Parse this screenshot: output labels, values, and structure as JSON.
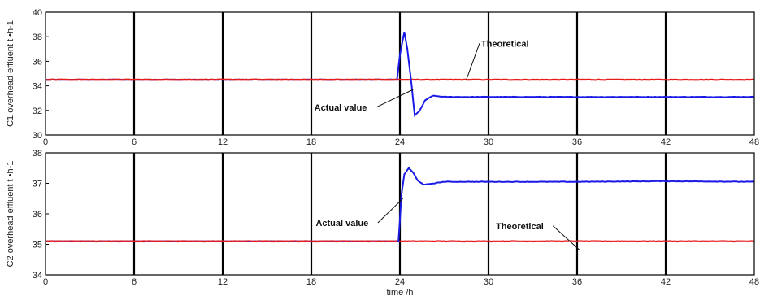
{
  "colors": {
    "actual": "#1a1ae6",
    "theoretical": "#e81b1b",
    "grid": "#000000",
    "axis": "#000000"
  },
  "chart_data": [
    {
      "type": "line",
      "ylabel": "C1 overhead effluent t •h-1",
      "xlabel": "",
      "xlim": [
        0,
        48
      ],
      "ylim": [
        30,
        40
      ],
      "xticks": [
        0,
        6,
        12,
        18,
        24,
        30,
        36,
        42,
        48
      ],
      "yticks": [
        30,
        32,
        34,
        36,
        38,
        40
      ],
      "grid": "vertical",
      "series": [
        {
          "name": "Actual value",
          "x": [
            0,
            3,
            6,
            10,
            14,
            18,
            23.8,
            24.0,
            24.3,
            24.5,
            24.8,
            25.0,
            25.3,
            25.7,
            26.2,
            27,
            30,
            36,
            42,
            48
          ],
          "y": [
            34.5,
            34.5,
            34.5,
            34.5,
            34.5,
            34.5,
            34.5,
            36.5,
            38.4,
            37.0,
            34.0,
            31.6,
            31.9,
            32.8,
            33.2,
            33.1,
            33.1,
            33.1,
            33.1,
            33.1
          ]
        },
        {
          "name": "Theoretical",
          "x": [
            0,
            48
          ],
          "y": [
            34.5,
            34.5
          ]
        }
      ],
      "annotations": [
        {
          "text": "Theoretical",
          "x": 29.5,
          "y": 37.2,
          "arrow_x": 28.5,
          "arrow_y": 34.5
        },
        {
          "text": "Actual value",
          "x": 18.2,
          "y": 32.0,
          "arrow_x": 24.9,
          "arrow_y": 33.7
        }
      ]
    },
    {
      "type": "line",
      "ylabel": "C2 overhead effluent t •h-1",
      "xlabel": "time /h",
      "xlim": [
        0,
        48
      ],
      "ylim": [
        34,
        38
      ],
      "xticks": [
        0,
        6,
        12,
        18,
        24,
        30,
        36,
        42,
        48
      ],
      "yticks": [
        34,
        35,
        36,
        37,
        38
      ],
      "grid": "vertical",
      "series": [
        {
          "name": "Actual value",
          "x": [
            0,
            6,
            12,
            18,
            23.9,
            24.0,
            24.1,
            24.3,
            24.6,
            24.9,
            25.2,
            25.6,
            26,
            27,
            30,
            36,
            42,
            48
          ],
          "y": [
            35.1,
            35.1,
            35.1,
            35.1,
            35.1,
            35.8,
            36.6,
            37.3,
            37.5,
            37.35,
            37.1,
            36.95,
            36.98,
            37.05,
            37.05,
            37.05,
            37.07,
            37.05
          ]
        },
        {
          "name": "Theoretical",
          "x": [
            0,
            48
          ],
          "y": [
            35.1,
            35.1
          ]
        }
      ],
      "annotations": [
        {
          "text": "Actual value",
          "x": 18.3,
          "y": 35.6,
          "arrow_x": 24.2,
          "arrow_y": 36.5
        },
        {
          "text": "Theoretical",
          "x": 30.5,
          "y": 35.5,
          "arrow_x": 36.2,
          "arrow_y": 34.8
        }
      ]
    }
  ]
}
